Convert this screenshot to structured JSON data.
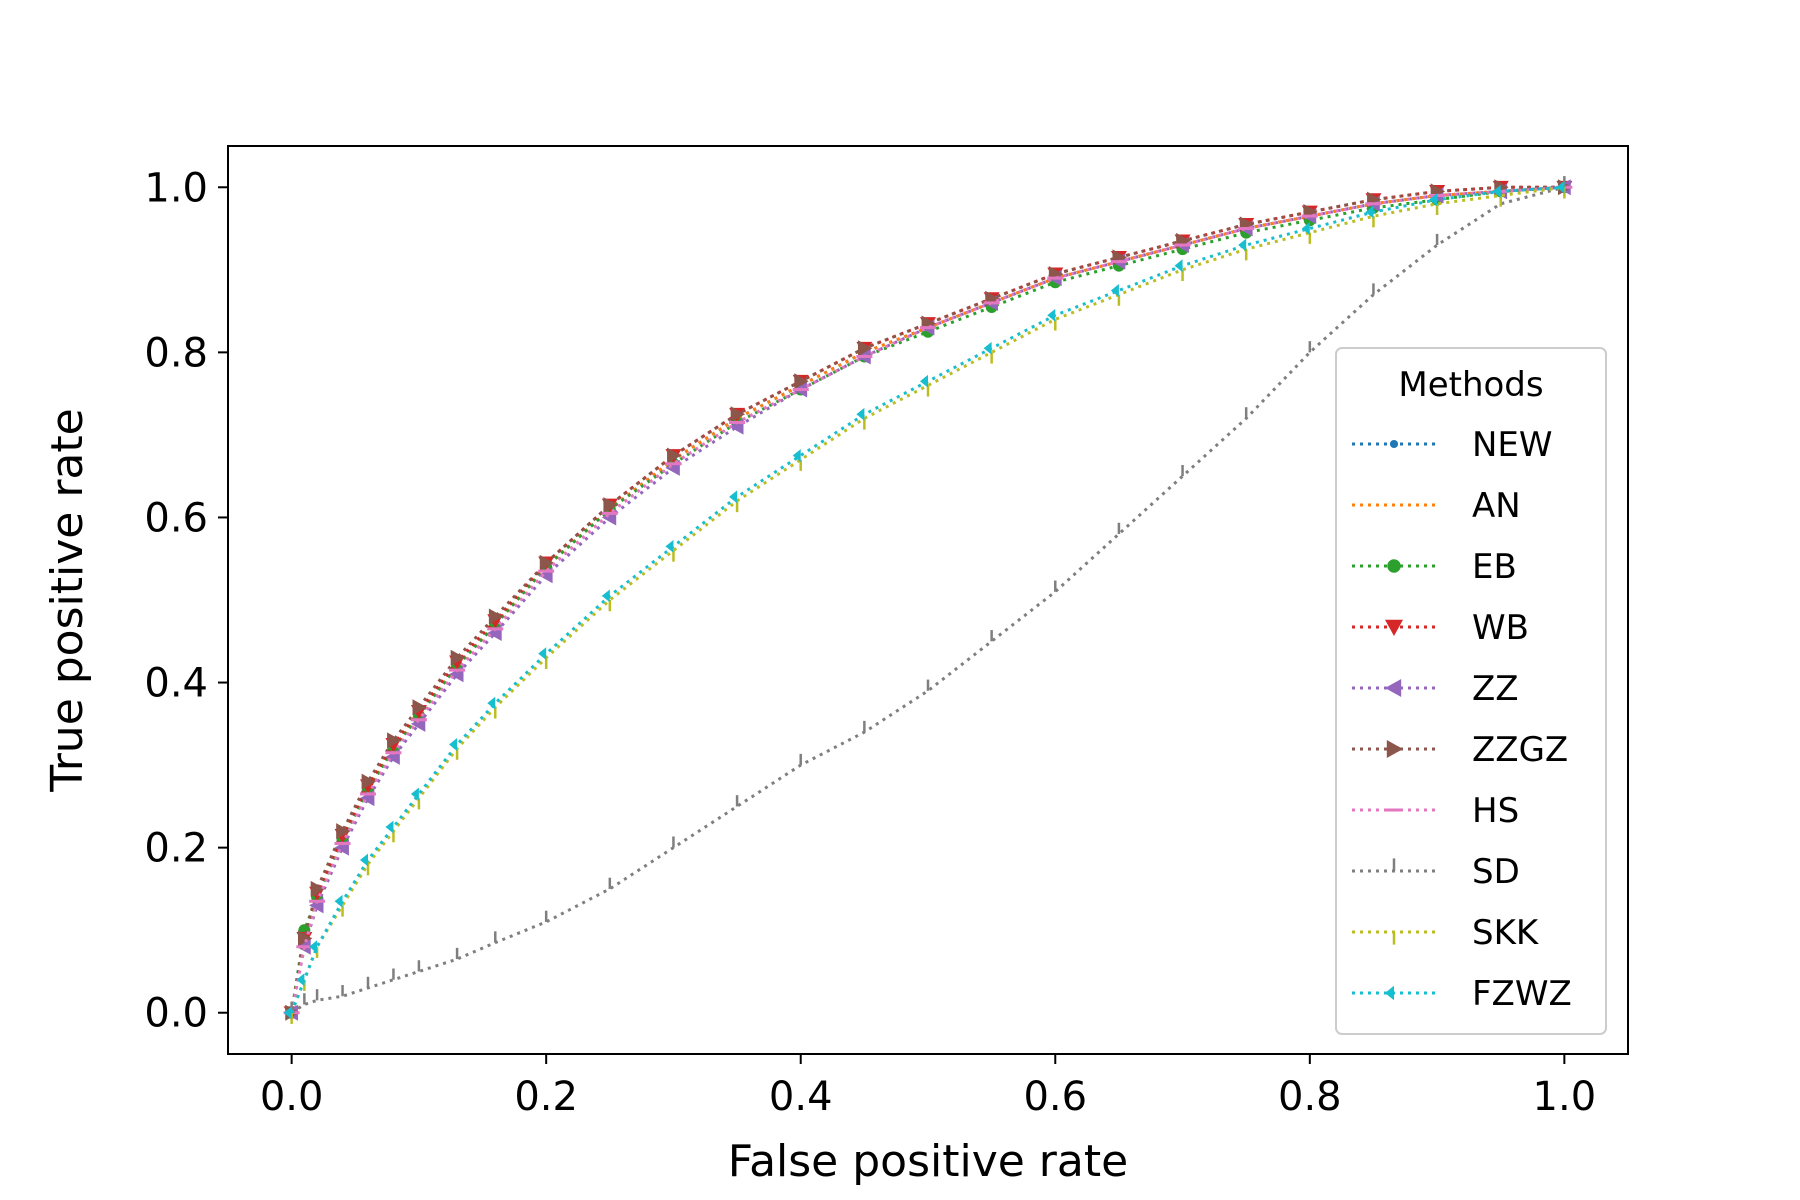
{
  "chart_data": {
    "type": "line",
    "title": "",
    "xlabel": "False positive rate",
    "ylabel": "True positive rate",
    "xlim": [
      -0.05,
      1.05
    ],
    "ylim": [
      -0.05,
      1.05
    ],
    "xticks": [
      0.0,
      0.2,
      0.4,
      0.6,
      0.8,
      1.0
    ],
    "yticks": [
      0.0,
      0.2,
      0.4,
      0.6,
      0.8,
      1.0
    ],
    "xtick_labels": [
      "0.0",
      "0.2",
      "0.4",
      "0.6",
      "0.8",
      "1.0"
    ],
    "ytick_labels": [
      "0.0",
      "0.2",
      "0.4",
      "0.6",
      "0.8",
      "1.0"
    ],
    "grid": false,
    "legend": {
      "title": "Methods",
      "position": "right"
    },
    "x": [
      0.0,
      0.01,
      0.02,
      0.04,
      0.06,
      0.08,
      0.1,
      0.13,
      0.16,
      0.2,
      0.25,
      0.3,
      0.35,
      0.4,
      0.45,
      0.5,
      0.55,
      0.6,
      0.65,
      0.7,
      0.75,
      0.8,
      0.85,
      0.9,
      0.95,
      1.0
    ],
    "series": [
      {
        "name": "NEW",
        "color": "#1f77b4",
        "marker": "point",
        "values": [
          0.0,
          0.09,
          0.14,
          0.21,
          0.27,
          0.32,
          0.36,
          0.42,
          0.47,
          0.54,
          0.61,
          0.67,
          0.72,
          0.76,
          0.8,
          0.83,
          0.86,
          0.89,
          0.91,
          0.93,
          0.95,
          0.965,
          0.98,
          0.99,
          0.995,
          1.0
        ]
      },
      {
        "name": "AN",
        "color": "#ff7f0e",
        "marker": "none",
        "values": [
          0.0,
          0.09,
          0.14,
          0.21,
          0.27,
          0.32,
          0.36,
          0.42,
          0.47,
          0.54,
          0.61,
          0.67,
          0.72,
          0.76,
          0.8,
          0.83,
          0.86,
          0.89,
          0.91,
          0.93,
          0.95,
          0.965,
          0.98,
          0.99,
          0.995,
          1.0
        ]
      },
      {
        "name": "EB",
        "color": "#2ca02c",
        "marker": "circle",
        "values": [
          0.0,
          0.1,
          0.14,
          0.21,
          0.27,
          0.32,
          0.36,
          0.42,
          0.47,
          0.54,
          0.61,
          0.665,
          0.715,
          0.755,
          0.795,
          0.825,
          0.855,
          0.885,
          0.905,
          0.925,
          0.945,
          0.96,
          0.975,
          0.985,
          0.995,
          1.0
        ]
      },
      {
        "name": "WB",
        "color": "#d62728",
        "marker": "triangle-down",
        "values": [
          0.0,
          0.09,
          0.145,
          0.215,
          0.275,
          0.325,
          0.365,
          0.425,
          0.475,
          0.545,
          0.615,
          0.675,
          0.725,
          0.765,
          0.805,
          0.835,
          0.865,
          0.895,
          0.915,
          0.935,
          0.955,
          0.97,
          0.985,
          0.995,
          1.0,
          1.0
        ]
      },
      {
        "name": "ZZ",
        "color": "#9467bd",
        "marker": "triangle-left",
        "values": [
          0.0,
          0.08,
          0.13,
          0.2,
          0.26,
          0.31,
          0.35,
          0.41,
          0.46,
          0.53,
          0.6,
          0.66,
          0.71,
          0.755,
          0.795,
          0.83,
          0.86,
          0.89,
          0.91,
          0.93,
          0.95,
          0.965,
          0.98,
          0.99,
          0.995,
          1.0
        ]
      },
      {
        "name": "ZZGZ",
        "color": "#8c564b",
        "marker": "triangle-right",
        "values": [
          0.0,
          0.09,
          0.15,
          0.22,
          0.28,
          0.33,
          0.37,
          0.43,
          0.48,
          0.545,
          0.615,
          0.675,
          0.725,
          0.765,
          0.805,
          0.835,
          0.865,
          0.895,
          0.915,
          0.935,
          0.955,
          0.97,
          0.985,
          0.995,
          1.0,
          1.0
        ]
      },
      {
        "name": "HS",
        "color": "#e377c2",
        "marker": "dash",
        "values": [
          0.0,
          0.08,
          0.135,
          0.205,
          0.265,
          0.315,
          0.355,
          0.415,
          0.465,
          0.535,
          0.605,
          0.665,
          0.715,
          0.755,
          0.795,
          0.83,
          0.86,
          0.89,
          0.91,
          0.93,
          0.95,
          0.965,
          0.98,
          0.99,
          0.995,
          1.0
        ]
      },
      {
        "name": "SD",
        "color": "#7f7f7f",
        "marker": "tick-up",
        "values": [
          0.0,
          0.01,
          0.015,
          0.02,
          0.03,
          0.04,
          0.05,
          0.065,
          0.085,
          0.11,
          0.15,
          0.2,
          0.25,
          0.3,
          0.34,
          0.39,
          0.45,
          0.51,
          0.58,
          0.65,
          0.72,
          0.8,
          0.87,
          0.93,
          0.98,
          1.0
        ]
      },
      {
        "name": "SKK",
        "color": "#bcbd22",
        "marker": "tick-down",
        "values": [
          0.0,
          0.04,
          0.08,
          0.13,
          0.18,
          0.22,
          0.26,
          0.32,
          0.37,
          0.43,
          0.5,
          0.56,
          0.62,
          0.67,
          0.72,
          0.76,
          0.8,
          0.84,
          0.87,
          0.9,
          0.925,
          0.945,
          0.965,
          0.98,
          0.99,
          1.0
        ]
      },
      {
        "name": "FZWZ",
        "color": "#17becf",
        "marker": "caret-left",
        "values": [
          0.0,
          0.04,
          0.08,
          0.135,
          0.185,
          0.225,
          0.265,
          0.325,
          0.375,
          0.435,
          0.505,
          0.565,
          0.625,
          0.675,
          0.725,
          0.765,
          0.805,
          0.845,
          0.875,
          0.905,
          0.93,
          0.95,
          0.97,
          0.985,
          0.995,
          1.0
        ]
      }
    ]
  }
}
